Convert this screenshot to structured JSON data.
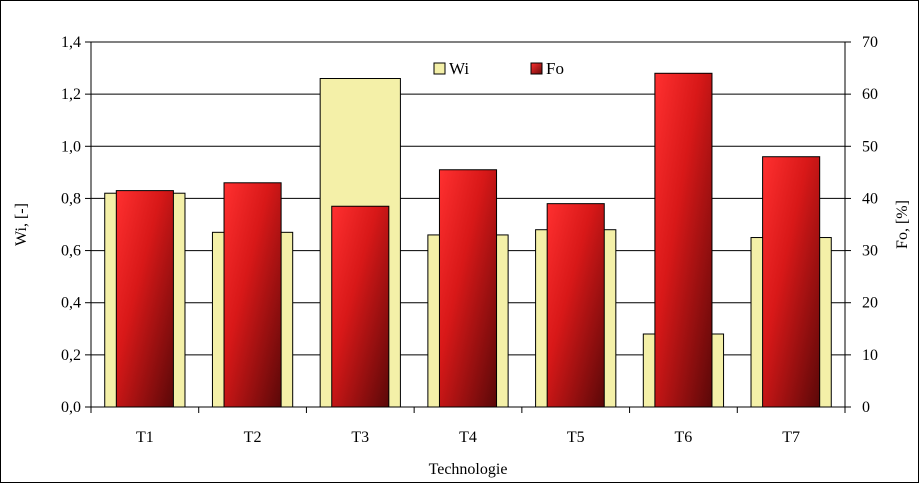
{
  "chart_data": {
    "type": "bar",
    "categories": [
      "T1",
      "T2",
      "T3",
      "T4",
      "T5",
      "T6",
      "T7"
    ],
    "series": [
      {
        "name": "Wi",
        "axis": "left",
        "values": [
          0.82,
          0.67,
          1.26,
          0.66,
          0.68,
          0.28,
          0.65
        ],
        "color": "#f4f0a8"
      },
      {
        "name": "Fo",
        "axis": "right",
        "values": [
          41.5,
          43.0,
          38.5,
          45.5,
          39.0,
          64.0,
          48.0
        ],
        "color": "#e02020"
      }
    ],
    "xlabel": "Technologie",
    "ylabel": "Wi, [-]",
    "y2label": "Fo, [%]",
    "ylim": [
      0,
      1.4
    ],
    "y2lim": [
      0,
      70
    ],
    "yticks": [
      "0,0",
      "0,2",
      "0,4",
      "0,6",
      "0,8",
      "1,0",
      "1,2",
      "1,4"
    ],
    "y2ticks": [
      "0",
      "10",
      "20",
      "30",
      "40",
      "50",
      "60",
      "70"
    ],
    "grid": true,
    "legend_position": "top-center"
  }
}
